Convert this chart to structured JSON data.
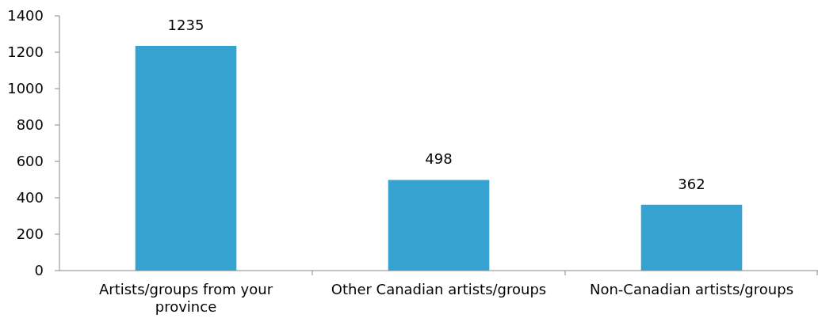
{
  "chart_data": {
    "type": "bar",
    "categories": [
      "Artists/groups from your province",
      "Other Canadian artists/groups",
      "Non-Canadian artists/groups"
    ],
    "values": [
      1235,
      498,
      362
    ],
    "color": "#36a2d0",
    "ylim": [
      0,
      1400
    ],
    "yticks": [
      0,
      200,
      400,
      600,
      800,
      1000,
      1200,
      1400
    ],
    "data_labels": true
  }
}
